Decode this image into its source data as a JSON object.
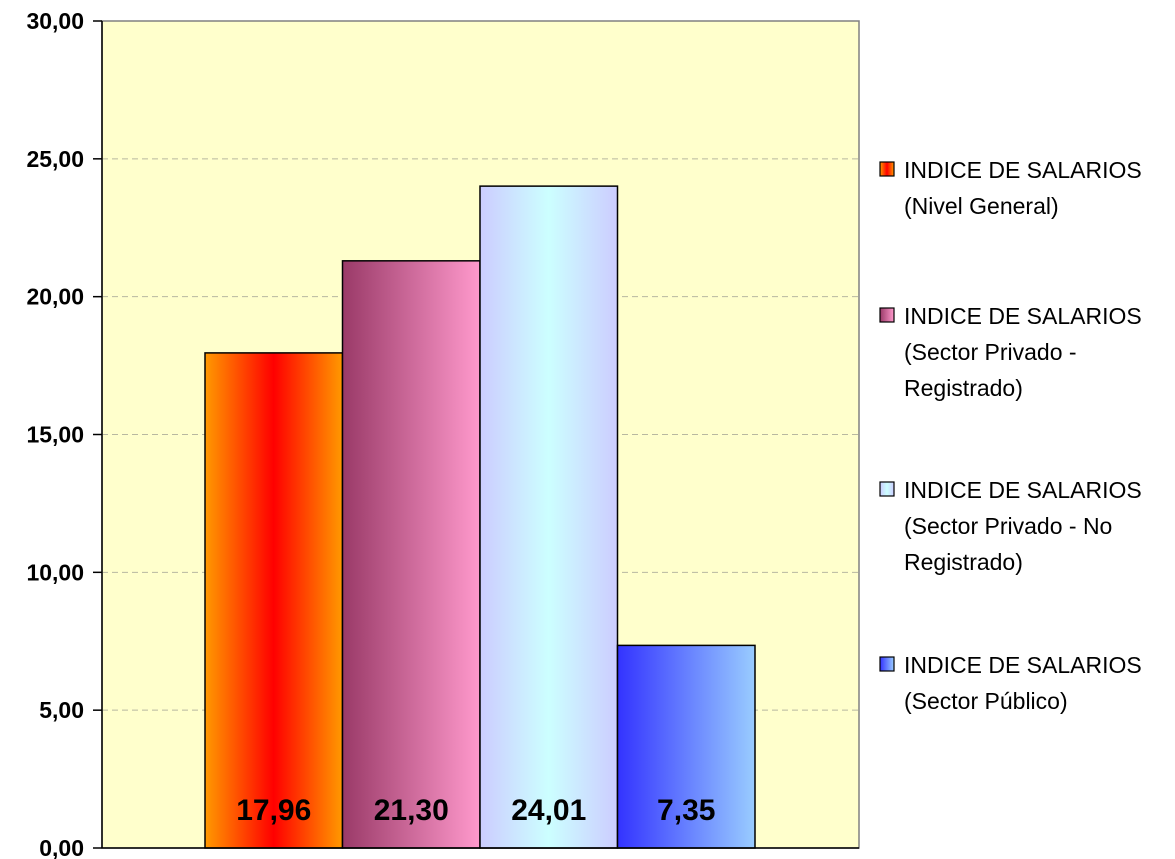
{
  "chart_data": {
    "type": "bar",
    "title": "",
    "xlabel": "",
    "ylabel": "",
    "ylim": [
      0,
      30
    ],
    "y_ticks": [
      "0,00",
      "5,00",
      "10,00",
      "15,00",
      "20,00",
      "25,00",
      "30,00"
    ],
    "y_tick_values": [
      0,
      5,
      10,
      15,
      20,
      25,
      30
    ],
    "grid": true,
    "legend_position": "right",
    "series": [
      {
        "name_lines": [
          "INDICE DE SALARIOS",
          "(Nivel General)"
        ],
        "value": 17.96,
        "label": "17,96",
        "colors": {
          "edge": "#ff9900",
          "center": "#ff0000"
        }
      },
      {
        "name_lines": [
          "INDICE DE SALARIOS",
          "(Sector Privado -",
          "Registrado)"
        ],
        "value": 21.3,
        "label": "21,30",
        "colors": {
          "edge": "#9a3a68",
          "center": "#ff99cc",
          "mode": "left-to-right"
        }
      },
      {
        "name_lines": [
          "INDICE DE SALARIOS",
          "(Sector Privado - No",
          "Registrado)"
        ],
        "value": 24.01,
        "label": "24,01",
        "colors": {
          "edge": "#ccccff",
          "center": "#ccffff"
        }
      },
      {
        "name_lines": [
          "INDICE DE SALARIOS",
          "(Sector Público)"
        ],
        "value": 7.35,
        "label": "7,35",
        "colors": {
          "edge": "#3333ff",
          "center": "#99ccff",
          "mode": "left-to-right"
        }
      }
    ],
    "plot_background": "#ffffcc"
  }
}
